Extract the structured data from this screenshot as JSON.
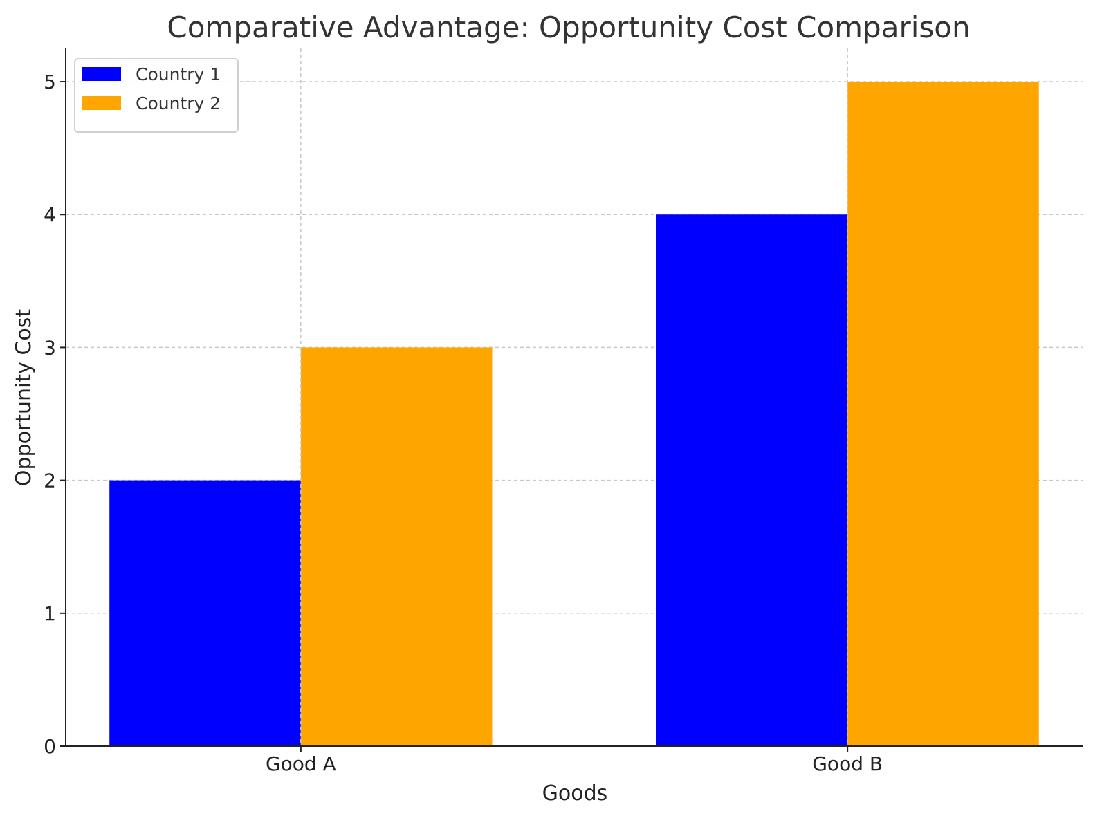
{
  "chart_data": {
    "type": "bar",
    "title": "Comparative Advantage: Opportunity Cost Comparison",
    "xlabel": "Goods",
    "ylabel": "Opportunity Cost",
    "categories": [
      "Good A",
      "Good B"
    ],
    "series": [
      {
        "name": "Country 1",
        "values": [
          2,
          4
        ],
        "color": "#0000ff"
      },
      {
        "name": "Country 2",
        "values": [
          3,
          5
        ],
        "color": "#ffa500"
      }
    ],
    "yticks": [
      0,
      1,
      2,
      3,
      4,
      5
    ],
    "ylim": [
      0,
      5.25
    ],
    "grid": true,
    "legend_position": "top-left"
  }
}
